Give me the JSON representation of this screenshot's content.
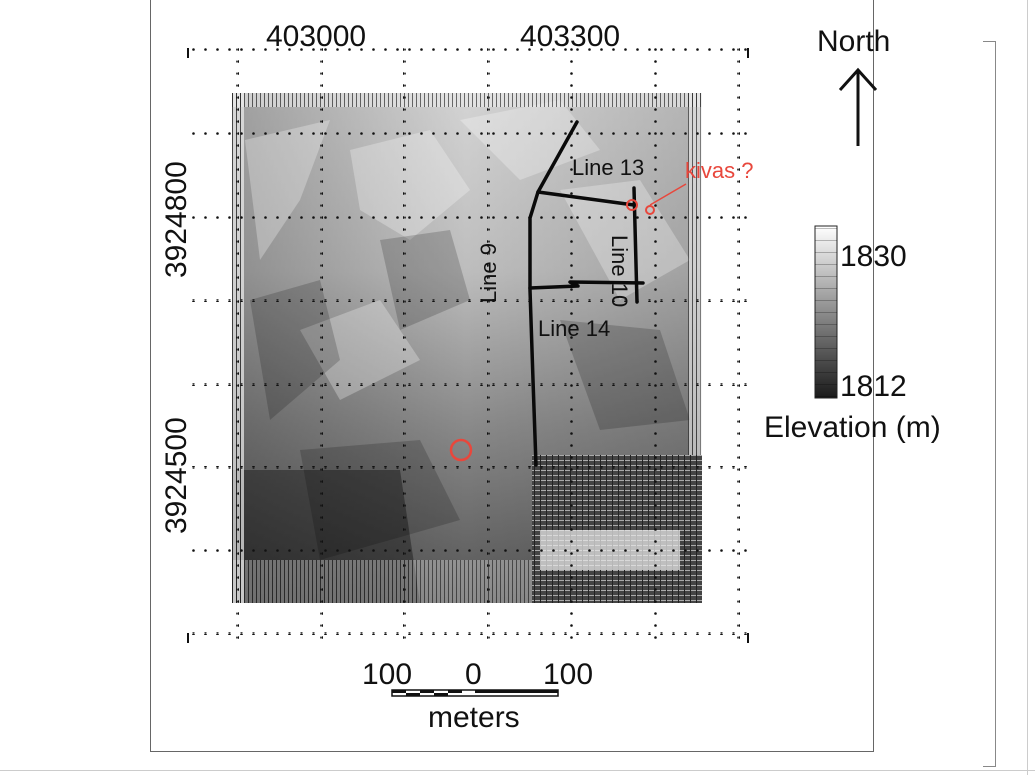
{
  "map": {
    "easting_labels": [
      "403000",
      "403300"
    ],
    "northing_labels": [
      "3924800",
      "3924500"
    ],
    "north_label": "North",
    "legend": {
      "max": "1830",
      "min": "1812",
      "title": "Elevation (m)"
    },
    "lines": {
      "line9": "Line 9",
      "line10": "Line 10",
      "line13": "Line 13",
      "line14": "Line 14"
    },
    "annotation": "kivas ?",
    "annotation_color": "#e8473c",
    "scale": {
      "left": "100",
      "center": "0",
      "right": "100",
      "unit": "meters"
    }
  }
}
